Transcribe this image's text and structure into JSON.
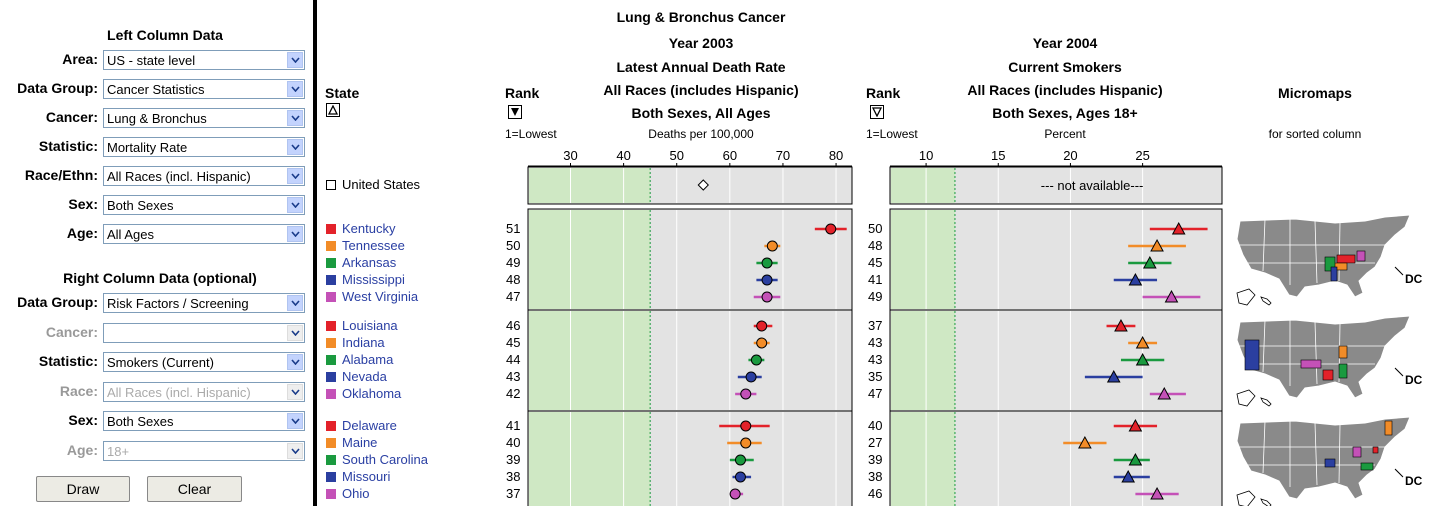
{
  "left_panel": {
    "left_title": "Left Column Data",
    "right_title": "Right Column Data (optional)",
    "left_fields": [
      {
        "label": "Area:",
        "value": "US - state level"
      },
      {
        "label": "Data Group:",
        "value": "Cancer Statistics"
      },
      {
        "label": "Cancer:",
        "value": "Lung & Bronchus"
      },
      {
        "label": "Statistic:",
        "value": "Mortality Rate"
      },
      {
        "label": "Race/Ethn:",
        "value": "All Races (incl. Hispanic)"
      },
      {
        "label": "Sex:",
        "value": "Both Sexes"
      },
      {
        "label": "Age:",
        "value": "All Ages"
      }
    ],
    "right_fields": [
      {
        "label": "Data Group:",
        "value": "Risk Factors / Screening",
        "enabled": true
      },
      {
        "label": "Cancer:",
        "value": "",
        "enabled": false
      },
      {
        "label": "Statistic:",
        "value": "Smokers (Current)",
        "enabled": true
      },
      {
        "label": "Race:",
        "value": "All Races (incl. Hispanic)",
        "enabled": false
      },
      {
        "label": "Sex:",
        "value": "Both Sexes",
        "enabled": true
      },
      {
        "label": "Age:",
        "value": "18+",
        "enabled": false
      }
    ],
    "draw_label": "Draw",
    "clear_label": "Clear"
  },
  "table": {
    "state_header": "State",
    "rank_header": "Rank",
    "rank_sub": "1=Lowest",
    "left_column": {
      "line1": "Lung & Bronchus Cancer",
      "line2": "Year 2003",
      "line3": "Latest Annual Death Rate",
      "line4": "All Races (includes Hispanic)",
      "line5": "Both Sexes, All Ages",
      "unit": "Deaths per 100,000"
    },
    "right_column": {
      "line2": "Year 2004",
      "line3": "Current Smokers",
      "line4": "All Races (includes Hispanic)",
      "line5": "Both Sexes, Ages 18+",
      "unit": "Percent"
    },
    "micromaps_header": "Micromaps",
    "micromaps_sub": "for sorted column",
    "dc_label": "DC",
    "us_name": "United States",
    "not_available": "--- not available---",
    "colors": {
      "red": "#e3222a",
      "orange": "#f28c28",
      "green": "#1a9a3f",
      "blue": "#2b3fa0",
      "purple": "#c451b7",
      "shade": "#cfe8c4",
      "panel": "#e3e3e3"
    }
  },
  "chart_data": {
    "type": "scatter",
    "left_axis": {
      "ticks": [
        30,
        40,
        50,
        60,
        70,
        80
      ],
      "xlim": [
        22,
        83
      ],
      "reference": 45
    },
    "right_axis": {
      "ticks": [
        10,
        15,
        20,
        25
      ],
      "xlim": [
        7.5,
        30.5
      ],
      "reference": 12
    },
    "us_value": 55,
    "groups": [
      [
        {
          "state": "Kentucky",
          "color": "red",
          "rank_left": "51",
          "rate": 79,
          "lo": 76,
          "hi": 82,
          "rank_right": "50",
          "smk": 27.5,
          "slo": 25.5,
          "shi": 29.5
        },
        {
          "state": "Tennessee",
          "color": "orange",
          "rank_left": "50",
          "rate": 68,
          "lo": 66.5,
          "hi": 69.5,
          "rank_right": "48",
          "smk": 26,
          "slo": 24,
          "shi": 28
        },
        {
          "state": "Arkansas",
          "color": "green",
          "rank_left": "49",
          "rate": 67,
          "lo": 65,
          "hi": 69,
          "rank_right": "45",
          "smk": 25.5,
          "slo": 24,
          "shi": 27
        },
        {
          "state": "Mississippi",
          "color": "blue",
          "rank_left": "48",
          "rate": 67,
          "lo": 65,
          "hi": 69,
          "rank_right": "41",
          "smk": 24.5,
          "slo": 23,
          "shi": 26
        },
        {
          "state": "West Virginia",
          "color": "purple",
          "rank_left": "47",
          "rate": 67,
          "lo": 64.5,
          "hi": 69.5,
          "rank_right": "49",
          "smk": 27,
          "slo": 25,
          "shi": 29
        }
      ],
      [
        {
          "state": "Louisiana",
          "color": "red",
          "rank_left": "46",
          "rate": 66,
          "lo": 64.5,
          "hi": 68,
          "rank_right": "37",
          "smk": 23.5,
          "slo": 22.5,
          "shi": 24.5
        },
        {
          "state": "Indiana",
          "color": "orange",
          "rank_left": "45",
          "rate": 66,
          "lo": 64.5,
          "hi": 67.5,
          "rank_right": "43",
          "smk": 25,
          "slo": 24,
          "shi": 26
        },
        {
          "state": "Alabama",
          "color": "green",
          "rank_left": "44",
          "rate": 65,
          "lo": 63.5,
          "hi": 66.5,
          "rank_right": "43",
          "smk": 25,
          "slo": 23.5,
          "shi": 26.5
        },
        {
          "state": "Nevada",
          "color": "blue",
          "rank_left": "43",
          "rate": 64,
          "lo": 61.5,
          "hi": 66,
          "rank_right": "35",
          "smk": 23,
          "slo": 21,
          "shi": 25
        },
        {
          "state": "Oklahoma",
          "color": "purple",
          "rank_left": "42",
          "rate": 63,
          "lo": 61,
          "hi": 65,
          "rank_right": "47",
          "smk": 26.5,
          "slo": 25.5,
          "shi": 28
        }
      ],
      [
        {
          "state": "Delaware",
          "color": "red",
          "rank_left": "41",
          "rate": 63,
          "lo": 58,
          "hi": 67.5,
          "rank_right": "40",
          "smk": 24.5,
          "slo": 23,
          "shi": 26
        },
        {
          "state": "Maine",
          "color": "orange",
          "rank_left": "40",
          "rate": 63,
          "lo": 59.5,
          "hi": 66,
          "rank_right": "27",
          "smk": 21,
          "slo": 19.5,
          "shi": 22.5
        },
        {
          "state": "South Carolina",
          "color": "green",
          "rank_left": "39",
          "rate": 62,
          "lo": 60,
          "hi": 64.5,
          "rank_right": "39",
          "smk": 24.5,
          "slo": 23,
          "shi": 25.5
        },
        {
          "state": "Missouri",
          "color": "blue",
          "rank_left": "38",
          "rate": 62,
          "lo": 60.5,
          "hi": 64,
          "rank_right": "38",
          "smk": 24,
          "slo": 23,
          "shi": 25.5
        },
        {
          "state": "Ohio",
          "color": "purple",
          "rank_left": "37",
          "rate": 61,
          "lo": 60,
          "hi": 62.5,
          "rank_right": "46",
          "smk": 26,
          "slo": 24.5,
          "shi": 27.5
        }
      ]
    ]
  }
}
